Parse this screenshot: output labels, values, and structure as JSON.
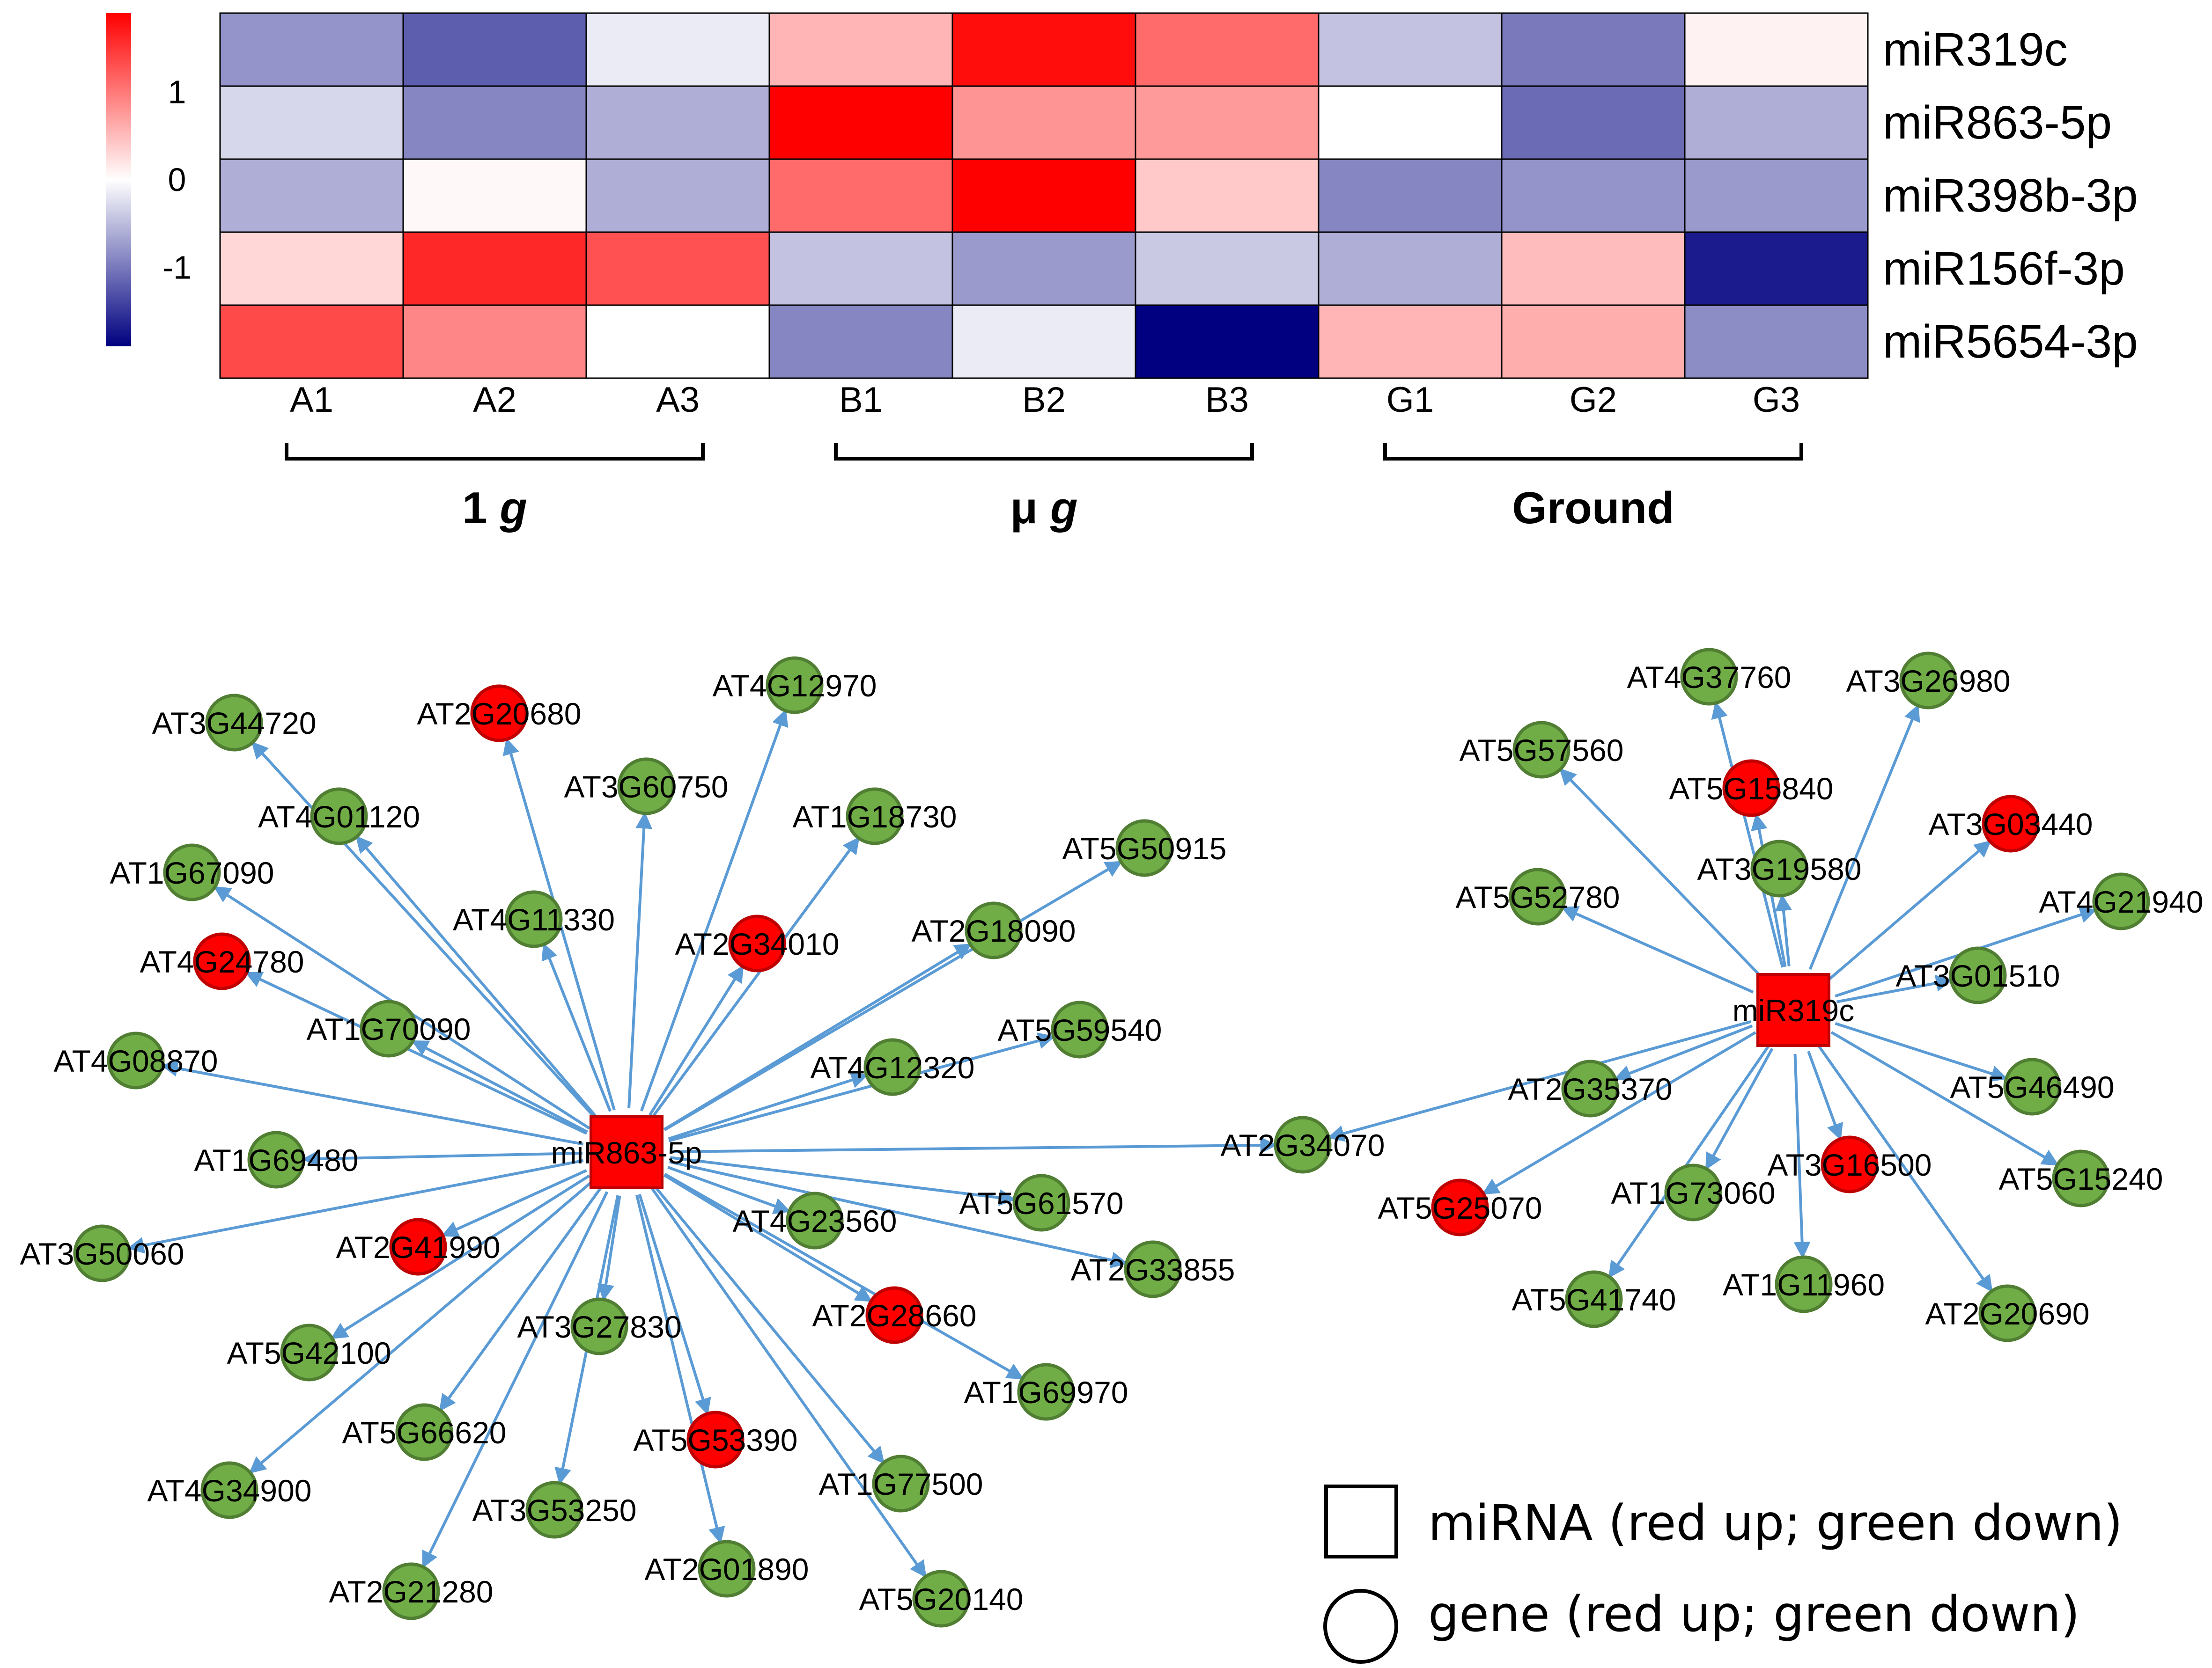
{
  "chart_data": [
    {
      "type": "heatmap",
      "rows": [
        "miR319c",
        "miR863-5p",
        "miR398b-3p",
        "miR156f-3p",
        "miR5654-3p"
      ],
      "columns": [
        "A1",
        "A2",
        "A3",
        "B1",
        "B2",
        "B3",
        "G1",
        "G2",
        "G3"
      ],
      "groups": [
        {
          "label_main": "1 ",
          "label_italic": "g",
          "columns": [
            "A1",
            "A2",
            "A3"
          ]
        },
        {
          "label_main": "μ ",
          "label_italic": "g",
          "columns": [
            "B1",
            "B2",
            "B3"
          ]
        },
        {
          "label_main": "Ground",
          "label_italic": "",
          "columns": [
            "G1",
            "G2",
            "G3"
          ]
        }
      ],
      "values": [
        [
          -0.8,
          -1.2,
          -0.15,
          0.55,
          1.8,
          1.1,
          -0.45,
          -1.0,
          0.1
        ],
        [
          -0.3,
          -0.9,
          -0.6,
          1.9,
          0.8,
          0.75,
          0.0,
          -1.1,
          -0.6
        ],
        [
          -0.6,
          0.05,
          -0.6,
          1.1,
          1.9,
          0.4,
          -0.9,
          -0.8,
          -0.75
        ],
        [
          0.3,
          1.6,
          1.3,
          -0.45,
          -0.75,
          -0.4,
          -0.6,
          0.5,
          -1.7
        ],
        [
          1.35,
          0.9,
          0.0,
          -0.9,
          -0.15,
          -1.9,
          0.55,
          0.6,
          -0.85
        ]
      ],
      "colorbar": {
        "ticks": [
          1,
          0,
          -1
        ],
        "tick_labels": [
          "1",
          "0",
          "-1"
        ],
        "min": -1.9,
        "max": 1.9
      },
      "colors": {
        "high": "#ff0000",
        "mid": "#ffffff",
        "low": "#000080"
      }
    },
    {
      "type": "network",
      "hubs": [
        {
          "id": "miR863-5p",
          "label": "miR863-5p",
          "regulation": "up",
          "targets": [
            {
              "id": "AT3G44720",
              "regulation": "down"
            },
            {
              "id": "AT2G20680",
              "regulation": "up"
            },
            {
              "id": "AT4G12970",
              "regulation": "down"
            },
            {
              "id": "AT4G01120",
              "regulation": "down"
            },
            {
              "id": "AT3G60750",
              "regulation": "down"
            },
            {
              "id": "AT1G18730",
              "regulation": "down"
            },
            {
              "id": "AT5G50915",
              "regulation": "down"
            },
            {
              "id": "AT1G67090",
              "regulation": "down"
            },
            {
              "id": "AT4G11330",
              "regulation": "down"
            },
            {
              "id": "AT2G34010",
              "regulation": "up"
            },
            {
              "id": "AT2G18090",
              "regulation": "down"
            },
            {
              "id": "AT4G24780",
              "regulation": "up"
            },
            {
              "id": "AT1G70090",
              "regulation": "down"
            },
            {
              "id": "AT5G59540",
              "regulation": "down"
            },
            {
              "id": "AT4G08870",
              "regulation": "down"
            },
            {
              "id": "AT4G12320",
              "regulation": "down"
            },
            {
              "id": "AT1G69480",
              "regulation": "down"
            },
            {
              "id": "AT2G34070",
              "regulation": "down"
            },
            {
              "id": "AT5G61570",
              "regulation": "down"
            },
            {
              "id": "AT4G23560",
              "regulation": "down"
            },
            {
              "id": "AT3G50060",
              "regulation": "down"
            },
            {
              "id": "AT2G41990",
              "regulation": "up"
            },
            {
              "id": "AT2G33855",
              "regulation": "down"
            },
            {
              "id": "AT3G27830",
              "regulation": "down"
            },
            {
              "id": "AT2G28660",
              "regulation": "up"
            },
            {
              "id": "AT5G42100",
              "regulation": "down"
            },
            {
              "id": "AT1G69970",
              "regulation": "down"
            },
            {
              "id": "AT5G66620",
              "regulation": "down"
            },
            {
              "id": "AT5G53390",
              "regulation": "up"
            },
            {
              "id": "AT1G77500",
              "regulation": "down"
            },
            {
              "id": "AT4G34900",
              "regulation": "down"
            },
            {
              "id": "AT3G53250",
              "regulation": "down"
            },
            {
              "id": "AT2G01890",
              "regulation": "down"
            },
            {
              "id": "AT5G20140",
              "regulation": "down"
            },
            {
              "id": "AT2G21280",
              "regulation": "down"
            }
          ]
        },
        {
          "id": "miR319c",
          "label": "miR319c",
          "regulation": "up",
          "targets": [
            {
              "id": "AT4G37760",
              "regulation": "down"
            },
            {
              "id": "AT3G26980",
              "regulation": "down"
            },
            {
              "id": "AT5G57560",
              "regulation": "down"
            },
            {
              "id": "AT5G15840",
              "regulation": "up"
            },
            {
              "id": "AT3G03440",
              "regulation": "up"
            },
            {
              "id": "AT3G19580",
              "regulation": "down"
            },
            {
              "id": "AT5G52780",
              "regulation": "down"
            },
            {
              "id": "AT4G21940",
              "regulation": "down"
            },
            {
              "id": "AT3G01510",
              "regulation": "down"
            },
            {
              "id": "AT2G35370",
              "regulation": "down"
            },
            {
              "id": "AT5G46490",
              "regulation": "down"
            },
            {
              "id": "AT2G34070",
              "regulation": "down"
            },
            {
              "id": "AT3G16500",
              "regulation": "up"
            },
            {
              "id": "AT5G15240",
              "regulation": "down"
            },
            {
              "id": "AT5G25070",
              "regulation": "up"
            },
            {
              "id": "AT1G73060",
              "regulation": "down"
            },
            {
              "id": "AT5G41740",
              "regulation": "down"
            },
            {
              "id": "AT1G11960",
              "regulation": "down"
            },
            {
              "id": "AT2G20690",
              "regulation": "down"
            }
          ]
        }
      ],
      "colors": {
        "up": "#ff0000",
        "down": "#70ad47",
        "edge": "#5b9bd5"
      }
    }
  ],
  "legend": {
    "mirna_label": "miRNA (red up; green down)",
    "gene_label": "gene (red up; green down)"
  }
}
